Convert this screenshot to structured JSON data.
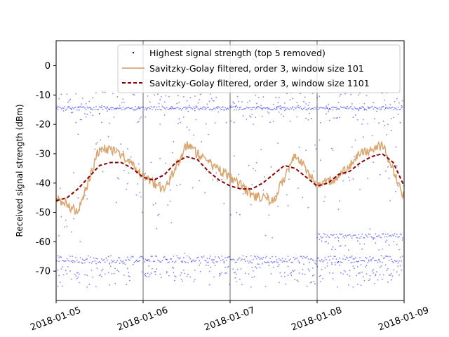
{
  "chart_data": {
    "type": "scatter",
    "xlabel": "",
    "ylabel": "Received signal strength (dBm)",
    "x_ticks": [
      "2018-01-05",
      "2018-01-06",
      "2018-01-07",
      "2018-01-08",
      "2018-01-09"
    ],
    "xlim": [
      "2018-01-05",
      "2018-01-09"
    ],
    "y_ticks": [
      0,
      -10,
      -20,
      -30,
      -40,
      -50,
      -60,
      -70
    ],
    "ylim": [
      -80,
      8.5
    ],
    "vertical_gridlines_at": [
      "2018-01-06",
      "2018-01-07",
      "2018-01-08"
    ],
    "legend_position": "top-right",
    "series": [
      {
        "name": "Highest signal strength (top 5 removed)",
        "kind": "scatter",
        "color": "#0000ff",
        "bands_dbm": [
          {
            "from": "2018-01-05",
            "to": "2018-01-09",
            "level": -14.5
          },
          {
            "from": "2018-01-05",
            "to": "2018-01-09",
            "level": -66
          },
          {
            "from": "2018-01-08",
            "to": "2018-01-09",
            "level": -58
          }
        ]
      },
      {
        "name": "Savitzky-Golay filtered, order 3, window size 101",
        "kind": "line",
        "color": "#daa66f",
        "x": [
          "2018-01-05 00:00",
          "2018-01-05 06:00",
          "2018-01-05 12:00",
          "2018-01-05 18:00",
          "2018-01-06 00:00",
          "2018-01-06 06:00",
          "2018-01-06 12:00",
          "2018-01-06 18:00",
          "2018-01-07 00:00",
          "2018-01-07 06:00",
          "2018-01-07 12:00",
          "2018-01-07 18:00",
          "2018-01-08 00:00",
          "2018-01-08 06:00",
          "2018-01-08 12:00",
          "2018-01-08 18:00",
          "2018-01-09 00:00"
        ],
        "values": [
          -45,
          -50,
          -28,
          -30,
          -38,
          -42,
          -27,
          -33,
          -38,
          -44,
          -46,
          -30,
          -41,
          -38,
          -30,
          -27,
          -45
        ]
      },
      {
        "name": "Savitzky-Golay filtered, order 3, window size 1101",
        "kind": "line",
        "style": "dashed",
        "color": "#8b0000",
        "x": [
          "2018-01-05 00:00",
          "2018-01-05 03:00",
          "2018-01-05 06:00",
          "2018-01-05 09:00",
          "2018-01-05 12:00",
          "2018-01-05 15:00",
          "2018-01-05 18:00",
          "2018-01-05 21:00",
          "2018-01-06 00:00",
          "2018-01-06 03:00",
          "2018-01-06 06:00",
          "2018-01-06 09:00",
          "2018-01-06 12:00",
          "2018-01-06 15:00",
          "2018-01-06 18:00",
          "2018-01-06 21:00",
          "2018-01-07 00:00",
          "2018-01-07 03:00",
          "2018-01-07 06:00",
          "2018-01-07 09:00",
          "2018-01-07 12:00",
          "2018-01-07 15:00",
          "2018-01-07 18:00",
          "2018-01-07 21:00",
          "2018-01-08 00:00",
          "2018-01-08 03:00",
          "2018-01-08 06:00",
          "2018-01-08 09:00",
          "2018-01-08 12:00",
          "2018-01-08 15:00",
          "2018-01-08 18:00",
          "2018-01-08 21:00",
          "2018-01-09 00:00"
        ],
        "values": [
          -46,
          -45,
          -42,
          -38,
          -34,
          -33,
          -33,
          -35,
          -38,
          -39,
          -37,
          -33,
          -31,
          -32,
          -36,
          -39,
          -41,
          -42,
          -42,
          -40,
          -37,
          -34,
          -35,
          -38,
          -41,
          -40,
          -37,
          -36,
          -33,
          -31,
          -30,
          -33,
          -41
        ]
      }
    ]
  }
}
